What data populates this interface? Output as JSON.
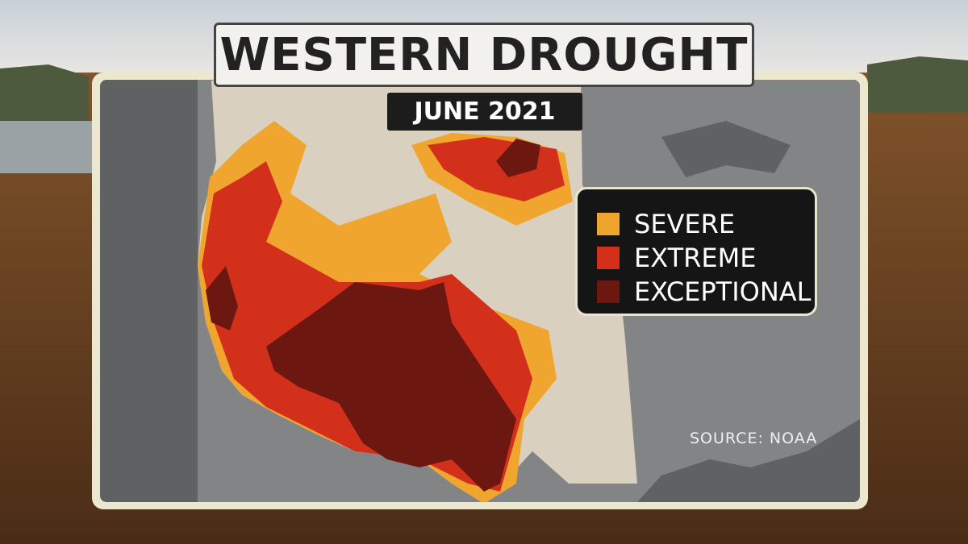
{
  "header": {
    "title": "WESTERN DROUGHT",
    "subtitle": "JUNE 2021"
  },
  "legend": {
    "items": [
      {
        "label": "SEVERE",
        "color": "#f0a62e"
      },
      {
        "label": "EXTREME",
        "color": "#d3301c"
      },
      {
        "label": "EXCEPTIONAL",
        "color": "#6c1710"
      }
    ]
  },
  "source": "SOURCE: NOAA"
}
